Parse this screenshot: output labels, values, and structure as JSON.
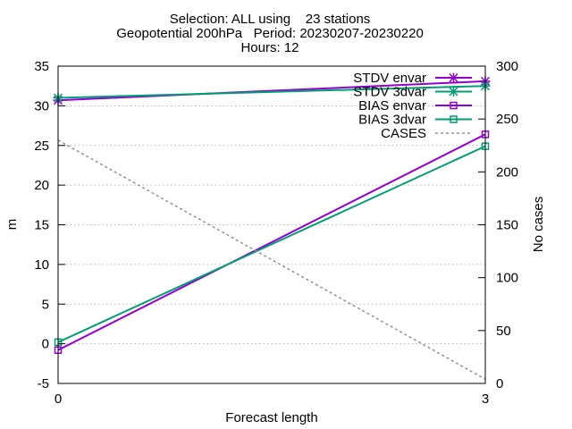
{
  "chart_data": {
    "type": "line",
    "title": [
      "Selection: ALL using    23 stations",
      "Geopotential 200hPa   Period: 20230207-20230220",
      "Hours: 12"
    ],
    "xlabel": "Forecast length",
    "ylabel": "m",
    "y2label": "No cases",
    "x": [
      0,
      3
    ],
    "xticks": [
      "0",
      "3"
    ],
    "xlim": [
      0,
      3
    ],
    "ylim": [
      -5,
      35
    ],
    "yticks": [
      "-5",
      "0",
      "5",
      "10",
      "15",
      "20",
      "25",
      "30",
      "35"
    ],
    "y2lim": [
      0,
      300
    ],
    "y2ticks": [
      "0",
      "50",
      "100",
      "150",
      "200",
      "250",
      "300"
    ],
    "grid": true,
    "legend_position": "top-right",
    "series": [
      {
        "name": "STDV envar",
        "axis": "y1",
        "values": [
          30.7,
          33.1
        ],
        "color": "#9400d3",
        "marker": "star"
      },
      {
        "name": "STDV 3dvar",
        "axis": "y1",
        "values": [
          31.0,
          32.5
        ],
        "color": "#009e73",
        "marker": "star"
      },
      {
        "name": "BIAS envar",
        "axis": "y1",
        "values": [
          -0.8,
          26.4
        ],
        "color": "#9400d3",
        "marker": "square"
      },
      {
        "name": "BIAS 3dvar",
        "axis": "y1",
        "values": [
          0.2,
          24.9
        ],
        "color": "#009e73",
        "marker": "square"
      },
      {
        "name": "CASES",
        "axis": "y2",
        "values": [
          230,
          4
        ],
        "color": "#909090",
        "marker": "none",
        "dashed": true
      }
    ]
  }
}
